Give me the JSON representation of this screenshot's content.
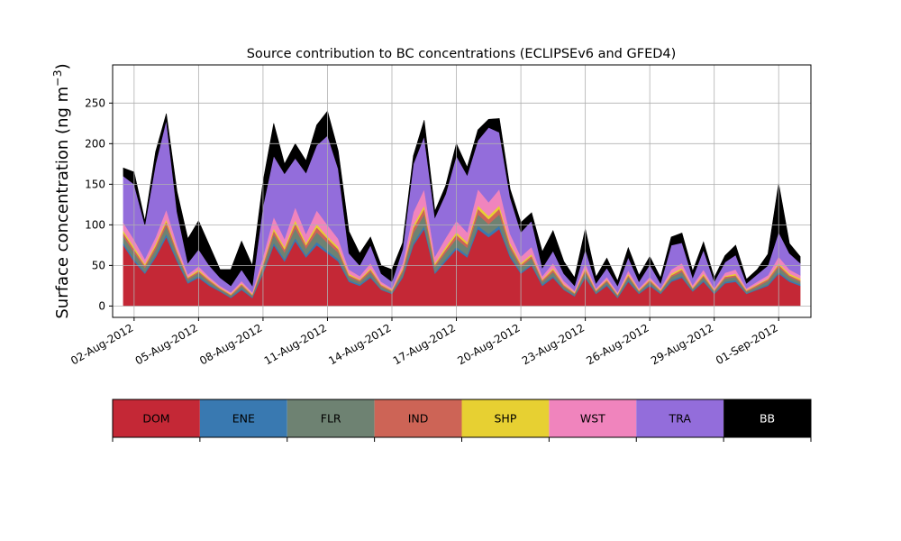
{
  "chart_data": {
    "type": "area",
    "stacked": true,
    "title": "Source contribution to BC concentrations (ECLIPSEv6 and GFED4)",
    "ylabel": "Surface concentration (ng m",
    "ylabel_exponent": "−3",
    "ylabel_close": ")",
    "xlabel": "",
    "grid": true,
    "legend_placement": "bottom",
    "ylim": [
      -14,
      297
    ],
    "xlim": [
      "2012-08-01T00:00",
      "2012-09-02T12:00"
    ],
    "yticks": [
      0,
      50,
      100,
      150,
      200,
      250
    ],
    "xticks": [
      {
        "date": "2012-08-02",
        "label": "02-Aug-2012"
      },
      {
        "date": "2012-08-05",
        "label": "05-Aug-2012"
      },
      {
        "date": "2012-08-08",
        "label": "08-Aug-2012"
      },
      {
        "date": "2012-08-11",
        "label": "11-Aug-2012"
      },
      {
        "date": "2012-08-14",
        "label": "14-Aug-2012"
      },
      {
        "date": "2012-08-17",
        "label": "17-Aug-2012"
      },
      {
        "date": "2012-08-20",
        "label": "20-Aug-2012"
      },
      {
        "date": "2012-08-23",
        "label": "23-Aug-2012"
      },
      {
        "date": "2012-08-26",
        "label": "26-Aug-2012"
      },
      {
        "date": "2012-08-29",
        "label": "29-Aug-2012"
      },
      {
        "date": "2012-09-01",
        "label": "01-Sep-2012"
      }
    ],
    "x": [
      "2012-08-01T12:00",
      "2012-08-02T00:00",
      "2012-08-02T12:00",
      "2012-08-03T00:00",
      "2012-08-03T12:00",
      "2012-08-04T00:00",
      "2012-08-04T12:00",
      "2012-08-05T00:00",
      "2012-08-05T12:00",
      "2012-08-06T00:00",
      "2012-08-06T12:00",
      "2012-08-07T00:00",
      "2012-08-07T12:00",
      "2012-08-08T00:00",
      "2012-08-08T12:00",
      "2012-08-09T00:00",
      "2012-08-09T12:00",
      "2012-08-10T00:00",
      "2012-08-10T12:00",
      "2012-08-11T00:00",
      "2012-08-11T12:00",
      "2012-08-12T00:00",
      "2012-08-12T12:00",
      "2012-08-13T00:00",
      "2012-08-13T12:00",
      "2012-08-14T00:00",
      "2012-08-14T12:00",
      "2012-08-15T00:00",
      "2012-08-15T12:00",
      "2012-08-16T00:00",
      "2012-08-16T12:00",
      "2012-08-17T00:00",
      "2012-08-17T12:00",
      "2012-08-18T00:00",
      "2012-08-18T12:00",
      "2012-08-19T00:00",
      "2012-08-19T12:00",
      "2012-08-20T00:00",
      "2012-08-20T12:00",
      "2012-08-21T00:00",
      "2012-08-21T12:00",
      "2012-08-22T00:00",
      "2012-08-22T12:00",
      "2012-08-23T00:00",
      "2012-08-23T12:00",
      "2012-08-24T00:00",
      "2012-08-24T12:00",
      "2012-08-25T00:00",
      "2012-08-25T12:00",
      "2012-08-26T00:00",
      "2012-08-26T12:00",
      "2012-08-27T00:00",
      "2012-08-27T12:00",
      "2012-08-28T00:00",
      "2012-08-28T12:00",
      "2012-08-29T00:00",
      "2012-08-29T12:00",
      "2012-08-30T00:00",
      "2012-08-30T12:00",
      "2012-08-31T00:00",
      "2012-08-31T12:00",
      "2012-09-01T00:00",
      "2012-09-01T12:00",
      "2012-09-02T00:00"
    ],
    "series": [
      {
        "name": "DOM",
        "color": "#c42836",
        "values": [
          75,
          55,
          40,
          60,
          85,
          55,
          28,
          35,
          25,
          18,
          10,
          20,
          10,
          40,
          75,
          55,
          80,
          60,
          75,
          65,
          55,
          30,
          25,
          35,
          20,
          15,
          35,
          75,
          95,
          40,
          55,
          70,
          60,
          95,
          85,
          95,
          60,
          40,
          50,
          25,
          35,
          20,
          12,
          35,
          15,
          25,
          10,
          30,
          15,
          25,
          15,
          30,
          35,
          18,
          30,
          15,
          28,
          30,
          15,
          20,
          25,
          40,
          30,
          25
        ]
      },
      {
        "name": "ENE",
        "color": "#3979b1",
        "values": [
          3,
          3,
          2,
          3,
          4,
          3,
          2,
          2,
          2,
          1,
          1,
          2,
          1,
          2,
          3,
          3,
          4,
          3,
          4,
          3,
          3,
          2,
          2,
          2,
          1,
          1,
          2,
          3,
          4,
          2,
          3,
          3,
          3,
          4,
          4,
          4,
          3,
          2,
          2,
          2,
          2,
          1,
          1,
          2,
          1,
          2,
          1,
          2,
          1,
          2,
          1,
          2,
          2,
          1,
          2,
          1,
          2,
          2,
          1,
          1,
          2,
          2,
          2,
          2
        ]
      },
      {
        "name": "FLR",
        "color": "#6e8272",
        "values": [
          8,
          8,
          5,
          7,
          10,
          6,
          3,
          4,
          3,
          2,
          2,
          3,
          2,
          6,
          10,
          8,
          12,
          8,
          12,
          10,
          8,
          4,
          3,
          5,
          3,
          2,
          5,
          12,
          14,
          6,
          8,
          10,
          9,
          14,
          12,
          14,
          8,
          6,
          7,
          3,
          5,
          3,
          2,
          5,
          2,
          3,
          2,
          4,
          2,
          3,
          2,
          4,
          5,
          2,
          4,
          2,
          4,
          4,
          2,
          3,
          4,
          6,
          4,
          3
        ]
      },
      {
        "name": "IND",
        "color": "#cd6456",
        "values": [
          4,
          4,
          3,
          4,
          5,
          3,
          2,
          2,
          2,
          1,
          1,
          2,
          1,
          3,
          5,
          4,
          6,
          4,
          6,
          5,
          4,
          2,
          2,
          3,
          2,
          1,
          3,
          6,
          7,
          3,
          4,
          5,
          4,
          7,
          6,
          7,
          4,
          3,
          3,
          2,
          3,
          2,
          1,
          3,
          1,
          2,
          1,
          2,
          1,
          2,
          1,
          2,
          3,
          1,
          2,
          1,
          2,
          2,
          1,
          2,
          2,
          3,
          2,
          2
        ]
      },
      {
        "name": "SHP",
        "color": "#e7d032",
        "values": [
          3,
          3,
          2,
          3,
          3,
          2,
          1,
          2,
          1,
          1,
          1,
          1,
          1,
          2,
          3,
          3,
          4,
          3,
          4,
          3,
          3,
          2,
          1,
          2,
          1,
          1,
          2,
          4,
          4,
          2,
          3,
          3,
          3,
          4,
          4,
          4,
          3,
          2,
          2,
          1,
          2,
          1,
          1,
          2,
          1,
          1,
          1,
          2,
          1,
          1,
          1,
          2,
          2,
          1,
          2,
          1,
          1,
          2,
          1,
          1,
          1,
          2,
          2,
          2
        ]
      },
      {
        "name": "WST",
        "color": "#f084bd",
        "values": [
          10,
          9,
          6,
          8,
          12,
          7,
          3,
          4,
          3,
          2,
          2,
          3,
          2,
          8,
          14,
          10,
          16,
          11,
          17,
          14,
          10,
          5,
          4,
          6,
          3,
          2,
          6,
          16,
          20,
          8,
          11,
          14,
          12,
          20,
          17,
          20,
          11,
          8,
          9,
          4,
          6,
          4,
          2,
          6,
          2,
          3,
          2,
          4,
          2,
          3,
          2,
          5,
          6,
          3,
          5,
          2,
          4,
          5,
          2,
          3,
          4,
          8,
          5,
          4
        ]
      },
      {
        "name": "TRA",
        "color": "#936ddb",
        "values": [
          57,
          68,
          42,
          90,
          110,
          40,
          14,
          21,
          14,
          10,
          8,
          14,
          8,
          62,
          75,
          80,
          60,
          75,
          80,
          110,
          86,
          20,
          13,
          22,
          10,
          8,
          17,
          59,
          65,
          48,
          54,
          80,
          70,
          60,
          92,
          70,
          45,
          30,
          32,
          10,
          15,
          9,
          6,
          17,
          6,
          11,
          8,
          16,
          8,
          15,
          6,
          30,
          25,
          9,
          24,
          8,
          13,
          18,
          6,
          9,
          12,
          30,
          20,
          15
        ]
      },
      {
        "name": "BB",
        "color": "#000000",
        "values": [
          10,
          15,
          5,
          15,
          8,
          25,
          30,
          35,
          25,
          10,
          20,
          35,
          25,
          30,
          40,
          12,
          18,
          15,
          25,
          30,
          22,
          27,
          15,
          10,
          10,
          15,
          8,
          10,
          20,
          8,
          10,
          15,
          10,
          13,
          10,
          17,
          10,
          12,
          10,
          20,
          25,
          15,
          10,
          25,
          8,
          12,
          6,
          12,
          8,
          10,
          7,
          10,
          12,
          8,
          10,
          5,
          8,
          12,
          5,
          6,
          14,
          60,
          12,
          8
        ]
      }
    ]
  },
  "legend": {
    "items": [
      {
        "label": "DOM",
        "color": "#c42836",
        "text_color": "#000000"
      },
      {
        "label": "ENE",
        "color": "#3979b1",
        "text_color": "#000000"
      },
      {
        "label": "FLR",
        "color": "#6e8272",
        "text_color": "#000000"
      },
      {
        "label": "IND",
        "color": "#cd6456",
        "text_color": "#000000"
      },
      {
        "label": "SHP",
        "color": "#e7d032",
        "text_color": "#000000"
      },
      {
        "label": "WST",
        "color": "#f084bd",
        "text_color": "#000000"
      },
      {
        "label": "TRA",
        "color": "#936ddb",
        "text_color": "#000000"
      },
      {
        "label": "BB",
        "color": "#000000",
        "text_color": "#ffffff"
      }
    ]
  }
}
